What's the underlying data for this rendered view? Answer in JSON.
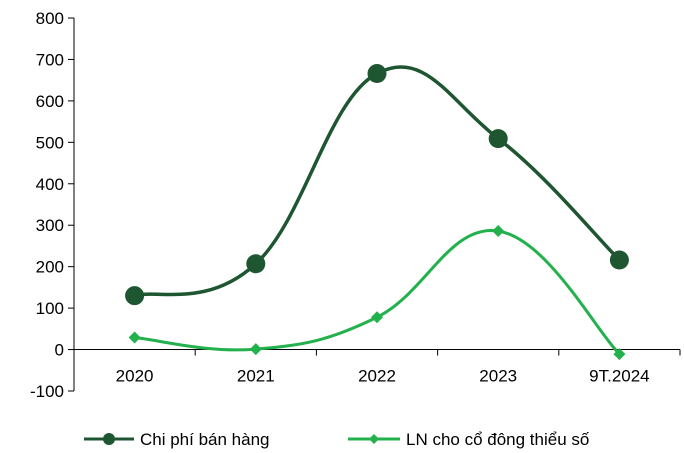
{
  "chart_data": {
    "type": "line",
    "categories": [
      "2020",
      "2021",
      "2022",
      "2023",
      "9T.2024"
    ],
    "series": [
      {
        "name": "Chi phí bán hàng",
        "values": [
          130,
          207,
          666,
          509,
          216
        ],
        "color": "#1e5631",
        "marker": "circle"
      },
      {
        "name": "LN cho cổ đông thiểu số",
        "values": [
          29,
          1,
          78,
          286,
          -11
        ],
        "color": "#22b14c",
        "marker": "diamond"
      }
    ],
    "ylim": [
      -100,
      800
    ],
    "yticks": [
      -100,
      0,
      100,
      200,
      300,
      400,
      500,
      600,
      700,
      800
    ],
    "smooth": true,
    "grid": false,
    "legend_position": "bottom"
  }
}
